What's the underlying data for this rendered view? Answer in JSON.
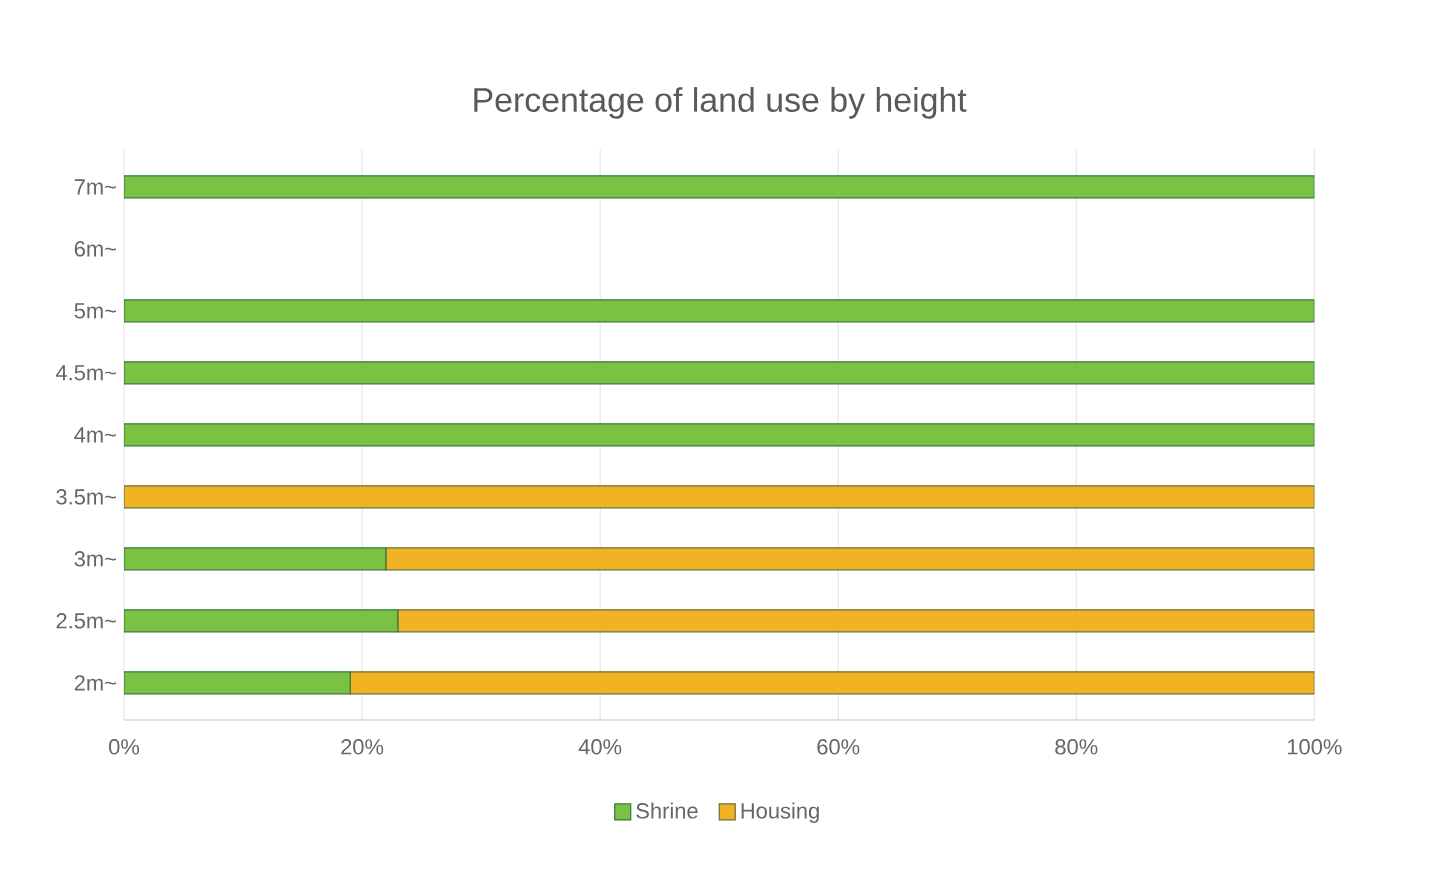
{
  "chart_data": {
    "type": "bar",
    "orientation": "horizontal",
    "stacked": true,
    "title": "Percentage of land use by height",
    "categories": [
      "7m~",
      "6m~",
      "5m~",
      "4.5m~",
      "4m~",
      "3.5m~",
      "3m~",
      "2.5m~",
      "2m~"
    ],
    "series": [
      {
        "name": "Shrine",
        "color": "#7cc242",
        "values": [
          100,
          null,
          100,
          100,
          100,
          0,
          22,
          23,
          19
        ]
      },
      {
        "name": "Housing",
        "color": "#f0b323",
        "values": [
          0,
          null,
          0,
          0,
          0,
          100,
          78,
          77,
          81
        ]
      }
    ],
    "xlim": [
      0,
      100
    ],
    "xticks": [
      {
        "value": 0,
        "label": "0%"
      },
      {
        "value": 20,
        "label": "20%"
      },
      {
        "value": 40,
        "label": "40%"
      },
      {
        "value": 60,
        "label": "60%"
      },
      {
        "value": 80,
        "label": "80%"
      },
      {
        "value": 100,
        "label": "100%"
      }
    ],
    "grid": "x",
    "legend": "bottom"
  }
}
